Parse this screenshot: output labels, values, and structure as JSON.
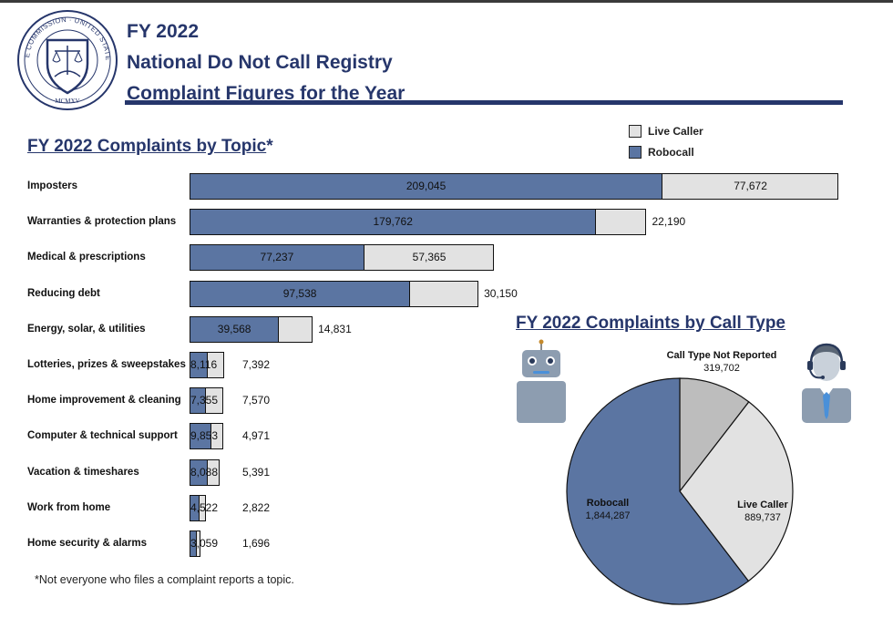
{
  "header": {
    "line1": "FY 2022",
    "line2": "National Do Not Call Registry",
    "line3": "Complaint Figures for the Year"
  },
  "seal": {
    "text": "FEDERAL TRADE COMMISSION · UNITED STATES OF AMERICA",
    "year": "MCMXV"
  },
  "colors": {
    "robocall": "#5b75a2",
    "live_caller": "#e2e2e2",
    "not_reported": "#bdbdbd",
    "title": "#26366b"
  },
  "legend": {
    "live_caller": "Live Caller",
    "robocall": "Robocall"
  },
  "topics_title": {
    "main": "FY 2022 Complaints by Topic",
    "mark": "*"
  },
  "call_type_title": "FY 2022 Complaints by Call Type",
  "footnote": "*Not everyone who files a complaint reports a topic.",
  "chart_data": [
    {
      "type": "bar",
      "orientation": "horizontal",
      "stacked": true,
      "title": "FY 2022 Complaints by Topic*",
      "categories": [
        "Imposters",
        "Warranties & protection plans",
        "Medical & prescriptions",
        "Reducing debt",
        "Energy, solar, & utilities",
        "Lotteries, prizes & sweepstakes",
        "Home improvement & cleaning",
        "Computer & technical support",
        "Vacation & timeshares",
        "Work from home",
        "Home security & alarms"
      ],
      "series": [
        {
          "name": "Robocall",
          "values": [
            209045,
            179762,
            77237,
            97538,
            39568,
            8116,
            7355,
            9853,
            8088,
            4522,
            3059
          ],
          "labels": [
            "209,045",
            "179,762",
            "77,237",
            "97,538",
            "39,568",
            "8,116",
            "7,355",
            "9,853",
            "8,088",
            "4,522",
            "3,059"
          ]
        },
        {
          "name": "Live Caller",
          "values": [
            77672,
            22190,
            57365,
            30150,
            14831,
            7392,
            7570,
            4971,
            5391,
            2822,
            1696
          ],
          "labels": [
            "77,672",
            "22,190",
            "57,365",
            "30,150",
            "14,831",
            "7,392",
            "7,570",
            "4,971",
            "5,391",
            "2,822",
            "1,696"
          ]
        }
      ],
      "xlim": [
        0,
        286717
      ],
      "legend": "top-right"
    },
    {
      "type": "pie",
      "title": "FY 2022 Complaints by Call Type",
      "slices": [
        {
          "name": "Call Type Not Reported",
          "value": 319702,
          "label": "319,702"
        },
        {
          "name": "Live Caller",
          "value": 889737,
          "label": "889,737"
        },
        {
          "name": "Robocall",
          "value": 1844287,
          "label": "1,844,287"
        }
      ]
    }
  ]
}
